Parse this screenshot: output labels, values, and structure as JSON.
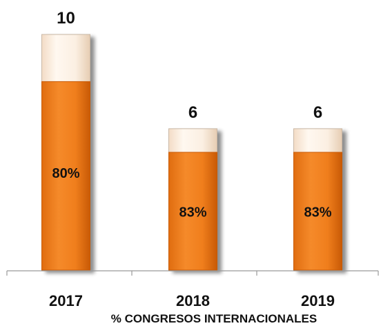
{
  "chart_data": {
    "type": "bar",
    "categories": [
      "2017",
      "2018",
      "2019"
    ],
    "series": [
      {
        "values": [
          10,
          6,
          6
        ]
      },
      {
        "values": [
          8,
          5,
          5
        ]
      }
    ],
    "bar_labels": [
      "10",
      "6",
      "6"
    ],
    "inner_labels": [
      "80%",
      "83%",
      "83%"
    ],
    "percent_values": [
      80,
      83,
      83
    ],
    "xlabel": "%  CONGRESOS INTERNACIONALES",
    "ylabel": "",
    "ylim": [
      0,
      10
    ],
    "grid": false,
    "legend": "none",
    "colors": {
      "total": "#fbeee0",
      "total_edge": "#c9b7a4",
      "part": "#f07e1c",
      "part_dark": "#c85a06",
      "shadow": "#8c8c8c",
      "axis": "#999999",
      "text": "#111111"
    }
  }
}
